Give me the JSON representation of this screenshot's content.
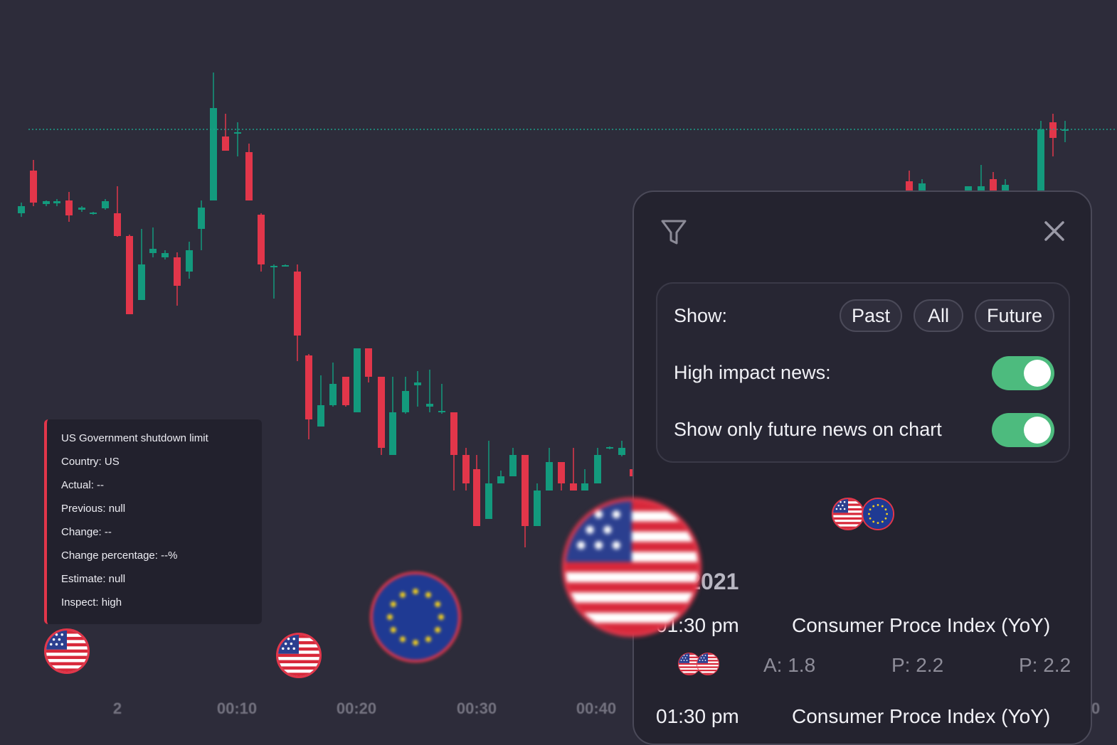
{
  "chart": {
    "x_ticks": [
      "2",
      "00:10",
      "00:20",
      "00:30",
      "00:40",
      "0"
    ],
    "colors": {
      "up": "#139a7d",
      "down": "#e2364a",
      "background": "#2d2c3a",
      "price_line": "#1e9f8a"
    }
  },
  "tooltip": {
    "lines": [
      "US Government shutdown limit",
      "Country: US",
      "Actual: --",
      "Previous: null",
      "Change: --",
      "Change percentage: --%",
      "Estimate: null",
      "Inspect: high"
    ]
  },
  "markers": {
    "icons": [
      "us-flag-icon",
      "eu-flag-icon"
    ]
  },
  "panel": {
    "filter_icon": "filter-icon",
    "close_icon": "close-icon",
    "show_label": "Show:",
    "show_options": [
      "Past",
      "All",
      "Future"
    ],
    "high_impact_label": "High impact news:",
    "high_impact_on": true,
    "future_only_label": "Show only future news on chart",
    "future_only_on": true,
    "date_heading": "an 2021",
    "events": [
      {
        "time": "01:30 pm",
        "title": "Consumer Proce Index (YoY)",
        "actual": "A: 1.8",
        "previous": "P: 2.2",
        "forecast": "P: 2.2"
      },
      {
        "time": "01:30 pm",
        "title": "Consumer Proce Index (YoY)"
      }
    ]
  }
}
